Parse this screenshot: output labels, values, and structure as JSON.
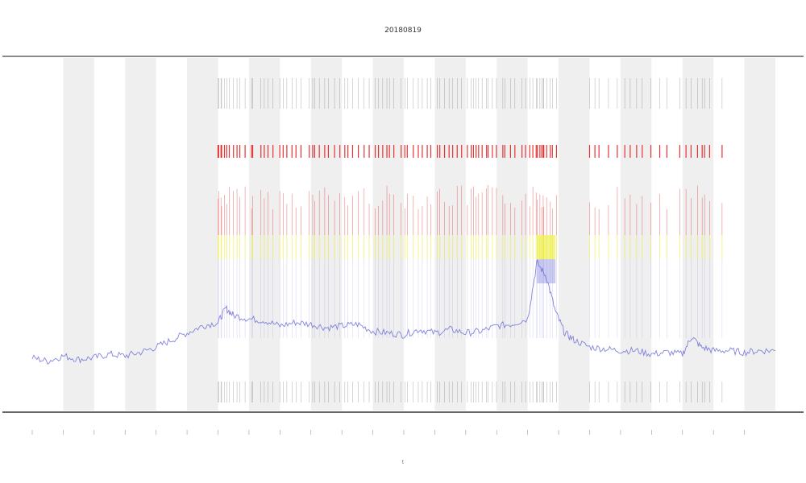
{
  "chart_data": {
    "type": "line",
    "title": "20180819",
    "xlabel": "t",
    "ylabel": "",
    "ylim": [
      0,
      1
    ],
    "x_count": 24,
    "bands": [
      1,
      3,
      5,
      7,
      9,
      11,
      13,
      15,
      17,
      19,
      21,
      23
    ],
    "activity_columns": [
      6.0,
      6.05,
      6.1,
      6.15,
      6.2,
      6.3,
      6.35,
      6.5,
      6.6,
      6.7,
      6.9,
      7.05,
      7.15,
      7.35,
      7.5,
      7.6,
      7.8,
      8.0,
      8.1,
      8.25,
      8.4,
      8.55,
      8.7,
      8.95,
      9.05,
      9.1,
      9.3,
      9.45,
      9.6,
      9.75,
      9.9,
      10.1,
      10.2,
      10.35,
      10.55,
      10.7,
      10.9,
      11.05,
      11.15,
      11.3,
      11.45,
      11.55,
      11.7,
      11.9,
      12.05,
      12.15,
      12.3,
      12.5,
      12.6,
      12.75,
      12.9,
      13.05,
      13.2,
      13.3,
      13.45,
      13.6,
      13.75,
      13.9,
      14.05,
      14.15,
      14.25,
      14.35,
      14.45,
      14.55,
      14.65,
      14.75,
      14.85,
      15.0,
      15.2,
      15.3,
      15.45,
      15.6,
      15.8,
      15.95,
      16.1,
      16.2,
      16.3,
      16.35,
      16.4,
      16.45,
      16.5,
      16.55,
      16.6,
      16.7,
      16.8,
      16.9,
      18.0,
      18.15,
      18.3,
      18.6,
      18.9,
      19.1,
      19.3,
      19.5,
      19.7,
      19.95,
      20.3,
      20.5,
      20.9,
      21.1,
      21.3,
      21.5,
      21.6,
      21.75,
      21.9,
      22.3
    ],
    "series": [
      {
        "color": "#6d6dd8",
        "x": [
          0,
          0.5,
          1,
          1.5,
          2,
          2.5,
          3,
          3.5,
          4,
          4.5,
          5,
          5.5,
          6,
          6.25,
          6.5,
          7,
          7.5,
          8,
          8.5,
          9,
          9.5,
          10,
          10.5,
          11,
          11.5,
          12,
          12.5,
          13,
          13.5,
          14,
          14.5,
          15,
          15.5,
          16,
          16.3,
          16.6,
          16.9,
          17.2,
          17.5,
          18,
          18.5,
          19,
          19.5,
          20,
          20.5,
          21,
          21.3,
          21.6,
          22,
          22.5,
          23,
          23.5,
          24
        ],
        "y": [
          0.15,
          0.14,
          0.155,
          0.145,
          0.15,
          0.16,
          0.155,
          0.165,
          0.18,
          0.2,
          0.22,
          0.24,
          0.25,
          0.29,
          0.27,
          0.26,
          0.255,
          0.24,
          0.25,
          0.245,
          0.235,
          0.24,
          0.245,
          0.225,
          0.22,
          0.215,
          0.23,
          0.22,
          0.23,
          0.22,
          0.225,
          0.24,
          0.245,
          0.26,
          0.42,
          0.38,
          0.28,
          0.22,
          0.2,
          0.18,
          0.175,
          0.17,
          0.17,
          0.16,
          0.165,
          0.16,
          0.21,
          0.18,
          0.17,
          0.17,
          0.165,
          0.17,
          0.17
        ]
      }
    ],
    "colors": {
      "band": "#efefef",
      "line": "#6d6dd8",
      "red": "#e02020",
      "yellow": "#e6e600",
      "marks": "#555555",
      "axis": "#444444"
    }
  }
}
